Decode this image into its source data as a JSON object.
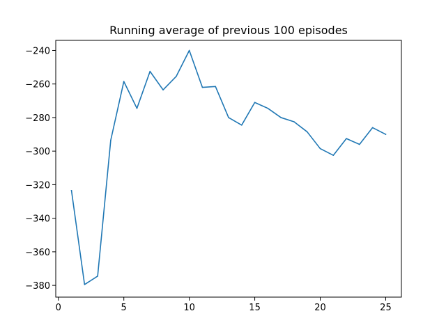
{
  "chart_data": {
    "type": "line",
    "title": "Running average of previous 100 episodes",
    "xlabel": "",
    "ylabel": "",
    "xlim": [
      -0.2,
      26.2
    ],
    "ylim": [
      -387,
      -234
    ],
    "xticks": [
      0,
      5,
      10,
      15,
      20,
      25
    ],
    "yticks": [
      -380,
      -360,
      -340,
      -320,
      -300,
      -280,
      -260,
      -240
    ],
    "grid": false,
    "legend": "none",
    "series": [
      {
        "color": "#1f77b4",
        "x": [
          1,
          2,
          3,
          4,
          5,
          6,
          7,
          8,
          9,
          10,
          11,
          12,
          13,
          14,
          15,
          16,
          17,
          18,
          19,
          20,
          21,
          22,
          23,
          24,
          25
        ],
        "y": [
          -323.5,
          -379.5,
          -374.5,
          -293.5,
          -258.5,
          -274.5,
          -252.5,
          -263.5,
          -255.5,
          -240.0,
          -262.0,
          -261.5,
          -280.0,
          -284.5,
          -271.0,
          -274.5,
          -280.0,
          -282.5,
          -288.5,
          -298.5,
          -302.5,
          -292.5,
          -296.0,
          -286.0,
          -290.0
        ]
      }
    ]
  }
}
